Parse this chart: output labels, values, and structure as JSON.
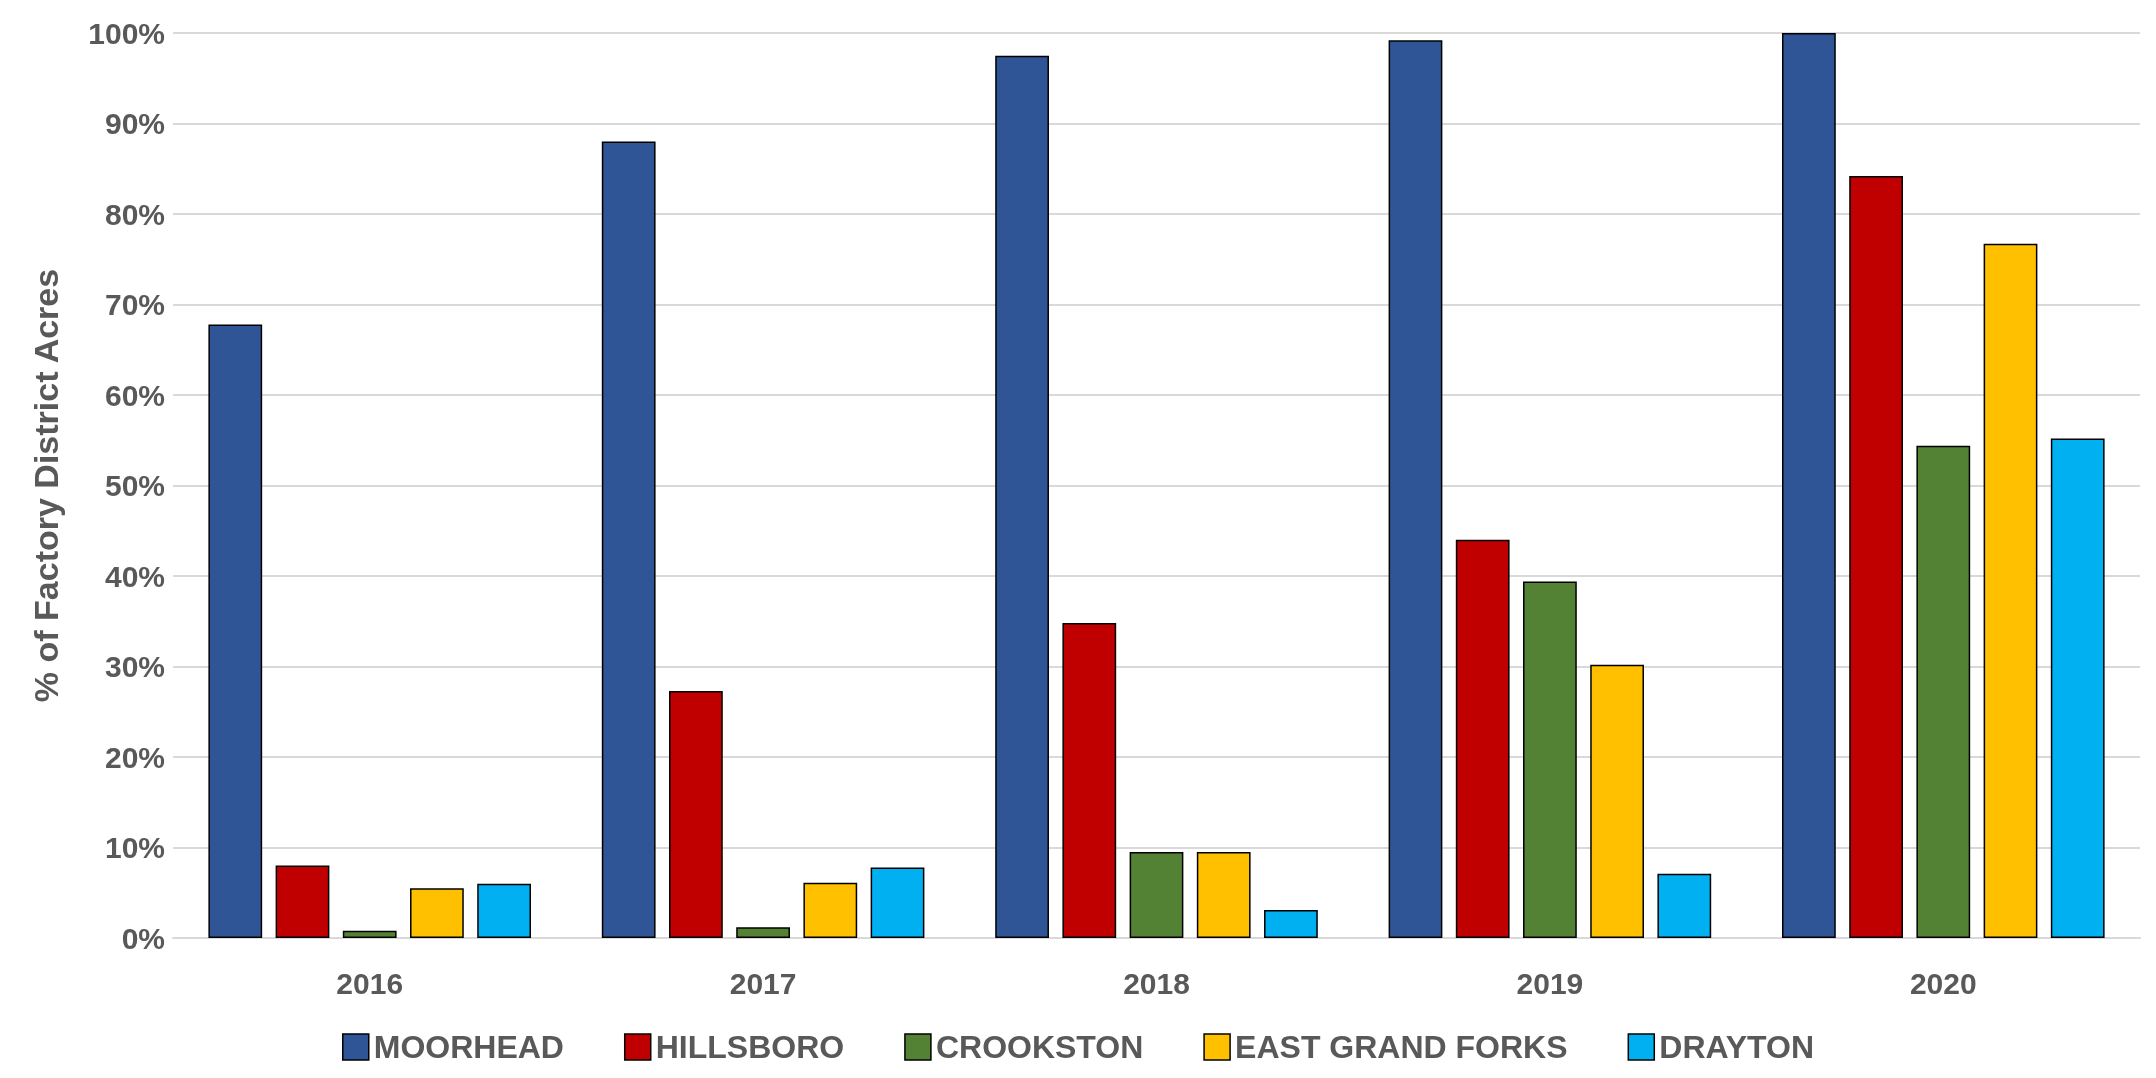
{
  "chart_data": {
    "type": "bar",
    "ylabel": "% of Factory District Acres",
    "categories": [
      "2016",
      "2017",
      "2018",
      "2019",
      "2020"
    ],
    "series": [
      {
        "name": "MOORHEAD",
        "color": "#2f5597",
        "values": [
          67.8,
          88.0,
          97.5,
          99.2,
          100
        ]
      },
      {
        "name": "HILLSBORO",
        "color": "#c00000",
        "values": [
          8.0,
          27.3,
          34.8,
          44.0,
          84.2
        ]
      },
      {
        "name": "CROOKSTON",
        "color": "#548235",
        "values": [
          0.8,
          1.2,
          9.5,
          39.4,
          54.4
        ]
      },
      {
        "name": "EAST GRAND FORKS",
        "color": "#ffc000",
        "values": [
          5.5,
          6.1,
          9.5,
          30.2,
          76.7
        ]
      },
      {
        "name": "DRAYTON",
        "color": "#00b0f0",
        "values": [
          6.0,
          7.8,
          3.1,
          7.1,
          55.2
        ]
      }
    ],
    "ylim": [
      0,
      100
    ],
    "yticks": [
      {
        "value": 0,
        "label": "0%"
      },
      {
        "value": 10,
        "label": "10%"
      },
      {
        "value": 20,
        "label": "20%"
      },
      {
        "value": 30,
        "label": "30%"
      },
      {
        "value": 40,
        "label": "40%"
      },
      {
        "value": 50,
        "label": "50%"
      },
      {
        "value": 60,
        "label": "60%"
      },
      {
        "value": 70,
        "label": "70%"
      },
      {
        "value": 80,
        "label": "80%"
      },
      {
        "value": 90,
        "label": "90%"
      },
      {
        "value": 100,
        "label": "100%"
      }
    ],
    "grid": "y",
    "legend": "bottom"
  }
}
